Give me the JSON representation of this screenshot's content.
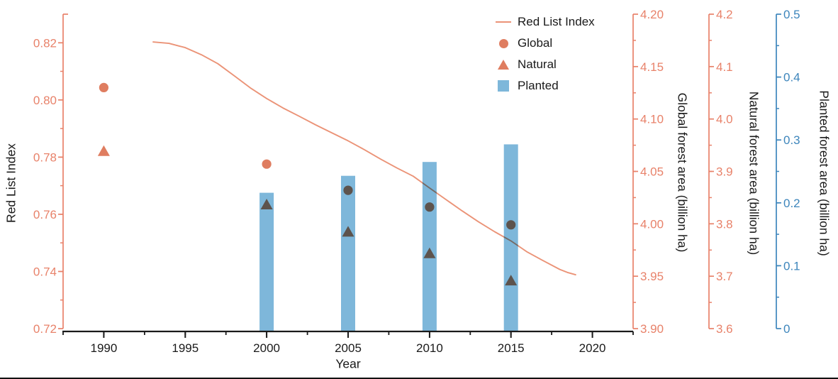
{
  "colors": {
    "salmon_axis": "#E8826A",
    "line_salmon": "#EB9377",
    "marker_salmon": "#DF7D60",
    "marker_dark": "#5D534D",
    "bar_blue": "#7EB7DA",
    "axis_blue": "#3E86BC",
    "text": "#1A1A1A"
  },
  "chart_data": {
    "type": "combo",
    "title": "",
    "x_axis": {
      "label": "Year",
      "min": 1987.5,
      "max": 2022.5,
      "minor_step": 2.5,
      "tick_labels": [
        "1990",
        "1995",
        "2000",
        "2005",
        "2010",
        "2015",
        "2020"
      ],
      "color": "#1A1A1A"
    },
    "y_axes": [
      {
        "id": "rli",
        "title": "Red List Index",
        "side": "left",
        "min": 0.72,
        "max": 0.83,
        "minor_step": 0.01,
        "tick_labels": [
          "0.72",
          "0.74",
          "0.76",
          "0.78",
          "0.80",
          "0.82"
        ],
        "color": "#E8826A"
      },
      {
        "id": "global",
        "title": "Global forest area (billion ha)",
        "side": "right",
        "min": 3.9,
        "max": 4.2,
        "minor_step": 0.025,
        "tick_labels": [
          "3.90",
          "3.95",
          "4.00",
          "4.05",
          "4.10",
          "4.15",
          "4.20"
        ],
        "color": "#E8826A"
      },
      {
        "id": "natural",
        "title": "Natural forest area (billion ha)",
        "side": "right",
        "min": 3.6,
        "max": 4.2,
        "minor_step": 0.05,
        "tick_labels": [
          "3.6",
          "3.7",
          "3.8",
          "3.9",
          "4.0",
          "4.1",
          "4.2"
        ],
        "color": "#E8826A"
      },
      {
        "id": "planted",
        "title": "Planted forest area (billion ha)",
        "side": "right",
        "min": 0,
        "max": 0.5,
        "minor_step": 0.05,
        "tick_labels": [
          "0",
          "0.1",
          "0.2",
          "0.3",
          "0.4",
          "0.5"
        ],
        "color": "#3E86BC"
      }
    ],
    "series": [
      {
        "name": "Red List Index",
        "type": "line",
        "axis": "rli",
        "color": "#EB9377",
        "points": [
          [
            1993,
            0.8203
          ],
          [
            1994,
            0.8198
          ],
          [
            1995,
            0.8183
          ],
          [
            1996,
            0.8158
          ],
          [
            1997,
            0.8127
          ],
          [
            1998,
            0.8085
          ],
          [
            1999,
            0.8042
          ],
          [
            2000,
            0.8005
          ],
          [
            2001,
            0.7972
          ],
          [
            2002,
            0.7943
          ],
          [
            2003,
            0.7913
          ],
          [
            2004,
            0.7885
          ],
          [
            2005,
            0.7857
          ],
          [
            2006,
            0.7826
          ],
          [
            2007,
            0.7793
          ],
          [
            2008,
            0.7762
          ],
          [
            2009,
            0.7733
          ],
          [
            2010,
            0.7692
          ],
          [
            2011,
            0.7652
          ],
          [
            2012,
            0.7612
          ],
          [
            2013,
            0.7574
          ],
          [
            2014,
            0.7539
          ],
          [
            2015,
            0.7507
          ],
          [
            2016,
            0.7468
          ],
          [
            2017,
            0.7437
          ],
          [
            2018,
            0.7407
          ],
          [
            2018.5,
            0.7396
          ],
          [
            2019,
            0.7388
          ]
        ]
      },
      {
        "name": "Global",
        "type": "scatter",
        "marker": "circle",
        "axis": "global",
        "color": "#DF7D60",
        "overlap_color": "#5D534D",
        "x": [
          1990,
          2000,
          2005,
          2010,
          2015
        ],
        "y": [
          4.13,
          4.057,
          4.032,
          4.016,
          3.999
        ]
      },
      {
        "name": "Natural",
        "type": "scatter",
        "marker": "triangle",
        "axis": "natural",
        "color": "#DF7D60",
        "overlap_color": "#5D534D",
        "x": [
          1990,
          2000,
          2005,
          2010,
          2015
        ],
        "y": [
          3.939,
          3.837,
          3.785,
          3.744,
          3.692
        ]
      },
      {
        "name": "Planted",
        "type": "bar",
        "axis": "planted",
        "color": "#7EB7DA",
        "x": [
          2000,
          2005,
          2010,
          2015
        ],
        "y": [
          0.216,
          0.243,
          0.265,
          0.293
        ]
      }
    ],
    "legend": {
      "position": "top-right",
      "items": [
        {
          "label": "Red List Index",
          "symbol": "line"
        },
        {
          "label": "Global",
          "symbol": "circle"
        },
        {
          "label": "Natural",
          "symbol": "triangle"
        },
        {
          "label": "Planted",
          "symbol": "square"
        }
      ]
    }
  }
}
